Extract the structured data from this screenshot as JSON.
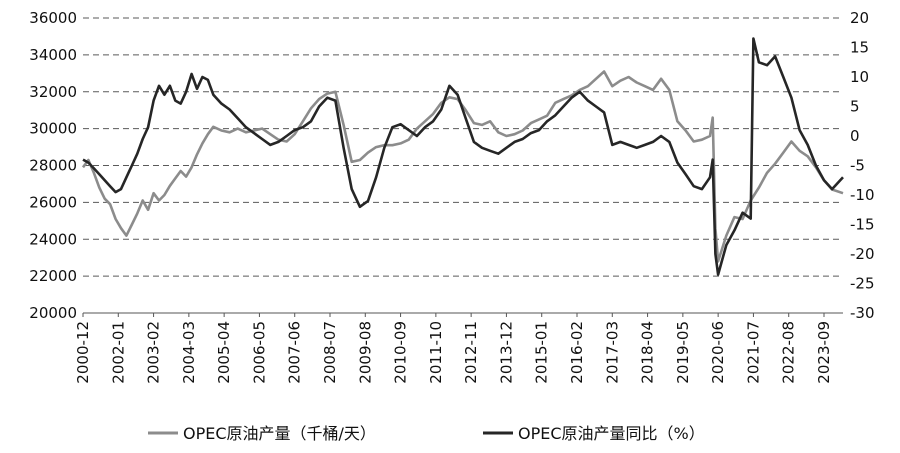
{
  "chart_data": {
    "type": "line",
    "title": "",
    "xlabel": "",
    "ylabel_left": "",
    "ylabel_right": "",
    "x_tick_labels": [
      "2000-12",
      "2002-01",
      "2003-02",
      "2004-03",
      "2005-04",
      "2006-05",
      "2007-06",
      "2008-07",
      "2009-08",
      "2010-09",
      "2011-10",
      "2012-11",
      "2013-12",
      "2015-01",
      "2016-02",
      "2017-03",
      "2018-04",
      "2019-05",
      "2020-06",
      "2021-07",
      "2022-08",
      "2023-09"
    ],
    "x_range": [
      "2000-12",
      "2024-04"
    ],
    "ylim_left": [
      20000,
      36000
    ],
    "yticks_left": [
      "20000",
      "22000",
      "24000",
      "26000",
      "28000",
      "30000",
      "32000",
      "34000",
      "36000"
    ],
    "ylim_right": [
      -30,
      20
    ],
    "yticks_right": [
      "-30",
      "-25",
      "-20",
      "-15",
      "-10",
      "-5",
      "0",
      "5",
      "10",
      "15",
      "20"
    ],
    "grid": "horizontal dashed",
    "legend_position": "bottom",
    "series": [
      {
        "name": "OPEC原油产量（千桶/天）",
        "axis": "left",
        "color": "#8c8c8c",
        "points": [
          [
            "2000-12",
            27900
          ],
          [
            "2001-02",
            28300
          ],
          [
            "2001-04",
            27600
          ],
          [
            "2001-06",
            26800
          ],
          [
            "2001-08",
            26200
          ],
          [
            "2001-10",
            25900
          ],
          [
            "2001-12",
            25100
          ],
          [
            "2002-02",
            24600
          ],
          [
            "2002-04",
            24200
          ],
          [
            "2002-06",
            24800
          ],
          [
            "2002-08",
            25400
          ],
          [
            "2002-10",
            26100
          ],
          [
            "2002-12",
            25600
          ],
          [
            "2003-02",
            26500
          ],
          [
            "2003-04",
            26100
          ],
          [
            "2003-06",
            26400
          ],
          [
            "2003-08",
            26900
          ],
          [
            "2003-10",
            27300
          ],
          [
            "2003-12",
            27700
          ],
          [
            "2004-02",
            27400
          ],
          [
            "2004-04",
            27900
          ],
          [
            "2004-06",
            28600
          ],
          [
            "2004-08",
            29200
          ],
          [
            "2004-10",
            29700
          ],
          [
            "2004-12",
            30100
          ],
          [
            "2005-03",
            29900
          ],
          [
            "2005-06",
            29800
          ],
          [
            "2005-09",
            30000
          ],
          [
            "2005-12",
            29800
          ],
          [
            "2006-03",
            29900
          ],
          [
            "2006-06",
            30000
          ],
          [
            "2006-09",
            29700
          ],
          [
            "2006-12",
            29400
          ],
          [
            "2007-03",
            29300
          ],
          [
            "2007-06",
            29700
          ],
          [
            "2007-09",
            30400
          ],
          [
            "2007-12",
            31100
          ],
          [
            "2008-03",
            31600
          ],
          [
            "2008-06",
            31900
          ],
          [
            "2008-09",
            32000
          ],
          [
            "2008-12",
            30200
          ],
          [
            "2009-03",
            28200
          ],
          [
            "2009-06",
            28300
          ],
          [
            "2009-09",
            28700
          ],
          [
            "2009-12",
            29000
          ],
          [
            "2010-03",
            29100
          ],
          [
            "2010-06",
            29100
          ],
          [
            "2010-09",
            29200
          ],
          [
            "2010-12",
            29400
          ],
          [
            "2011-03",
            30000
          ],
          [
            "2011-06",
            30400
          ],
          [
            "2011-09",
            30800
          ],
          [
            "2011-12",
            31400
          ],
          [
            "2012-03",
            31700
          ],
          [
            "2012-06",
            31600
          ],
          [
            "2012-09",
            31000
          ],
          [
            "2012-12",
            30300
          ],
          [
            "2013-03",
            30200
          ],
          [
            "2013-06",
            30400
          ],
          [
            "2013-09",
            29800
          ],
          [
            "2013-12",
            29600
          ],
          [
            "2014-03",
            29700
          ],
          [
            "2014-06",
            29900
          ],
          [
            "2014-09",
            30300
          ],
          [
            "2014-12",
            30500
          ],
          [
            "2015-03",
            30700
          ],
          [
            "2015-06",
            31400
          ],
          [
            "2015-09",
            31600
          ],
          [
            "2015-12",
            31800
          ],
          [
            "2016-03",
            32100
          ],
          [
            "2016-06",
            32300
          ],
          [
            "2016-09",
            32700
          ],
          [
            "2016-12",
            33100
          ],
          [
            "2017-03",
            32300
          ],
          [
            "2017-06",
            32600
          ],
          [
            "2017-09",
            32800
          ],
          [
            "2017-12",
            32500
          ],
          [
            "2018-03",
            32300
          ],
          [
            "2018-06",
            32100
          ],
          [
            "2018-09",
            32700
          ],
          [
            "2018-12",
            32100
          ],
          [
            "2019-03",
            30400
          ],
          [
            "2019-06",
            29900
          ],
          [
            "2019-09",
            29300
          ],
          [
            "2019-12",
            29400
          ],
          [
            "2020-03",
            29600
          ],
          [
            "2020-04",
            30600
          ],
          [
            "2020-05",
            24600
          ],
          [
            "2020-06",
            22800
          ],
          [
            "2020-09",
            24200
          ],
          [
            "2020-12",
            25200
          ],
          [
            "2021-03",
            25100
          ],
          [
            "2021-06",
            26100
          ],
          [
            "2021-09",
            26800
          ],
          [
            "2021-12",
            27600
          ],
          [
            "2022-03",
            28100
          ],
          [
            "2022-06",
            28700
          ],
          [
            "2022-09",
            29300
          ],
          [
            "2022-12",
            28800
          ],
          [
            "2023-03",
            28500
          ],
          [
            "2023-06",
            27900
          ],
          [
            "2023-09",
            27200
          ],
          [
            "2023-12",
            26700
          ],
          [
            "2024-04",
            26500
          ]
        ]
      },
      {
        "name": "OPEC原油产量同比（%）",
        "axis": "right",
        "color": "#262626",
        "points": [
          [
            "2000-12",
            -4.0
          ],
          [
            "2001-02",
            -4.5
          ],
          [
            "2001-04",
            -5.5
          ],
          [
            "2001-06",
            -6.5
          ],
          [
            "2001-08",
            -7.5
          ],
          [
            "2001-10",
            -8.5
          ],
          [
            "2001-12",
            -9.5
          ],
          [
            "2002-02",
            -9.0
          ],
          [
            "2002-04",
            -7.0
          ],
          [
            "2002-06",
            -5.0
          ],
          [
            "2002-08",
            -3.0
          ],
          [
            "2002-10",
            -0.5
          ],
          [
            "2002-12",
            1.5
          ],
          [
            "2003-02",
            6.0
          ],
          [
            "2003-04",
            8.5
          ],
          [
            "2003-06",
            7.0
          ],
          [
            "2003-08",
            8.5
          ],
          [
            "2003-10",
            6.0
          ],
          [
            "2003-12",
            5.5
          ],
          [
            "2004-02",
            7.5
          ],
          [
            "2004-04",
            10.5
          ],
          [
            "2004-06",
            8.0
          ],
          [
            "2004-08",
            10.0
          ],
          [
            "2004-10",
            9.5
          ],
          [
            "2004-12",
            7.0
          ],
          [
            "2005-03",
            5.5
          ],
          [
            "2005-06",
            4.5
          ],
          [
            "2005-09",
            3.0
          ],
          [
            "2005-12",
            1.5
          ],
          [
            "2006-03",
            0.5
          ],
          [
            "2006-06",
            -0.5
          ],
          [
            "2006-09",
            -1.5
          ],
          [
            "2006-12",
            -1.0
          ],
          [
            "2007-03",
            0.0
          ],
          [
            "2007-06",
            1.0
          ],
          [
            "2007-09",
            1.5
          ],
          [
            "2007-12",
            2.5
          ],
          [
            "2008-03",
            5.0
          ],
          [
            "2008-06",
            6.5
          ],
          [
            "2008-09",
            6.0
          ],
          [
            "2008-12",
            -2.0
          ],
          [
            "2009-03",
            -9.0
          ],
          [
            "2009-06",
            -12.0
          ],
          [
            "2009-09",
            -11.0
          ],
          [
            "2009-12",
            -7.0
          ],
          [
            "2010-03",
            -2.0
          ],
          [
            "2010-06",
            1.5
          ],
          [
            "2010-09",
            2.0
          ],
          [
            "2010-12",
            1.0
          ],
          [
            "2011-03",
            0.0
          ],
          [
            "2011-06",
            1.5
          ],
          [
            "2011-09",
            2.5
          ],
          [
            "2011-12",
            4.5
          ],
          [
            "2012-03",
            8.5
          ],
          [
            "2012-06",
            7.0
          ],
          [
            "2012-09",
            3.0
          ],
          [
            "2012-12",
            -1.0
          ],
          [
            "2013-03",
            -2.0
          ],
          [
            "2013-06",
            -2.5
          ],
          [
            "2013-09",
            -3.0
          ],
          [
            "2013-12",
            -2.0
          ],
          [
            "2014-03",
            -1.0
          ],
          [
            "2014-06",
            -0.5
          ],
          [
            "2014-09",
            0.5
          ],
          [
            "2014-12",
            1.0
          ],
          [
            "2015-03",
            2.5
          ],
          [
            "2015-06",
            3.5
          ],
          [
            "2015-09",
            5.0
          ],
          [
            "2015-12",
            6.5
          ],
          [
            "2016-03",
            7.5
          ],
          [
            "2016-06",
            6.0
          ],
          [
            "2016-09",
            5.0
          ],
          [
            "2016-12",
            4.0
          ],
          [
            "2017-03",
            -1.5
          ],
          [
            "2017-06",
            -1.0
          ],
          [
            "2017-09",
            -1.5
          ],
          [
            "2017-12",
            -2.0
          ],
          [
            "2018-03",
            -1.5
          ],
          [
            "2018-06",
            -1.0
          ],
          [
            "2018-09",
            0.0
          ],
          [
            "2018-12",
            -1.0
          ],
          [
            "2019-03",
            -4.5
          ],
          [
            "2019-06",
            -6.5
          ],
          [
            "2019-09",
            -8.5
          ],
          [
            "2019-12",
            -9.0
          ],
          [
            "2020-03",
            -7.0
          ],
          [
            "2020-04",
            -4.0
          ],
          [
            "2020-05",
            -20.0
          ],
          [
            "2020-06",
            -23.5
          ],
          [
            "2020-09",
            -18.5
          ],
          [
            "2020-12",
            -16.0
          ],
          [
            "2021-03",
            -13.0
          ],
          [
            "2021-06",
            -14.0
          ],
          [
            "2021-07",
            16.5
          ],
          [
            "2021-09",
            12.5
          ],
          [
            "2021-12",
            12.0
          ],
          [
            "2022-03",
            13.5
          ],
          [
            "2022-06",
            10.0
          ],
          [
            "2022-09",
            6.5
          ],
          [
            "2022-12",
            1.0
          ],
          [
            "2023-03",
            -1.5
          ],
          [
            "2023-06",
            -5.0
          ],
          [
            "2023-09",
            -7.5
          ],
          [
            "2023-12",
            -9.0
          ],
          [
            "2024-04",
            -7.0
          ]
        ]
      }
    ]
  }
}
